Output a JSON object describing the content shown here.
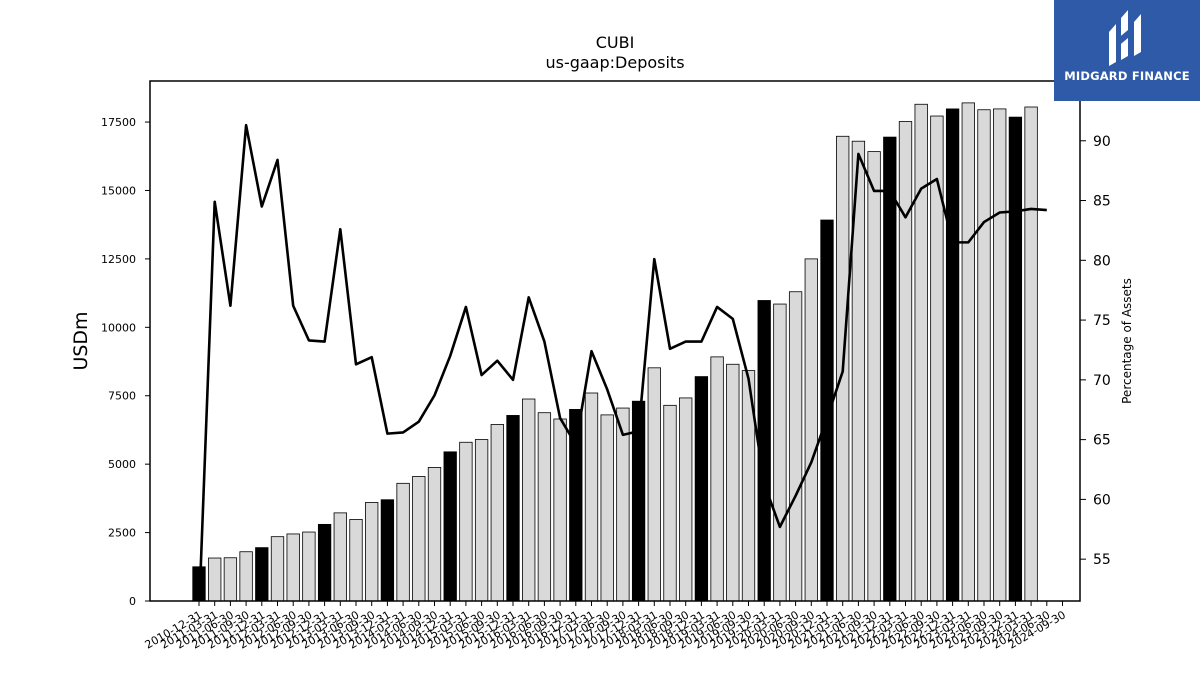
{
  "chart_data": {
    "type": "bar",
    "title": "CUBI",
    "subtitle": "us-gaap:Deposits",
    "ylabel": "USDm",
    "y2label": "Percentage of Assets",
    "ylim": [
      0,
      19000
    ],
    "y2lim": [
      51.5,
      95
    ],
    "yticks": [
      0,
      2500,
      5000,
      7500,
      10000,
      12500,
      15000,
      17500
    ],
    "y2ticks": [
      55,
      60,
      65,
      70,
      75,
      80,
      85,
      90
    ],
    "categories": [
      "2010-12-31",
      "2011-03-31",
      "2011-06-30",
      "2011-09-30",
      "2011-12-31",
      "2012-03-31",
      "2012-06-30",
      "2012-09-30",
      "2012-12-31",
      "2013-03-31",
      "2013-06-30",
      "2013-09-30",
      "2013-12-31",
      "2014-03-31",
      "2014-06-30",
      "2014-09-30",
      "2014-12-31",
      "2015-03-31",
      "2015-06-30",
      "2015-09-30",
      "2015-12-31",
      "2016-03-31",
      "2016-06-30",
      "2016-09-30",
      "2016-12-31",
      "2017-03-31",
      "2017-06-30",
      "2017-09-30",
      "2017-12-31",
      "2018-03-31",
      "2018-06-30",
      "2018-09-30",
      "2018-12-31",
      "2019-03-31",
      "2019-06-30",
      "2019-09-30",
      "2019-12-31",
      "2020-03-31",
      "2020-06-30",
      "2020-09-30",
      "2020-12-31",
      "2021-03-31",
      "2021-06-30",
      "2021-09-30",
      "2021-12-31",
      "2022-03-31",
      "2022-06-30",
      "2022-09-30",
      "2022-12-31",
      "2023-03-31",
      "2023-06-30",
      "2023-09-30",
      "2023-12-31",
      "2024-03-31",
      "2024-06-30",
      "2024-09-30"
    ],
    "series": [
      {
        "kind": "bar",
        "values": [
          1250,
          1570,
          1580,
          1800,
          1950,
          2350,
          2450,
          2520,
          2800,
          3220,
          2980,
          3600,
          3700,
          4300,
          4550,
          4880,
          5450,
          5800,
          5900,
          6450,
          6780,
          7380,
          6880,
          6650,
          7000,
          7600,
          6800,
          7050,
          7300,
          8520,
          7150,
          7420,
          8200,
          8920,
          8650,
          8420,
          10980,
          10850,
          11300,
          12500,
          13920,
          16980,
          16800,
          16420,
          16950,
          17520,
          18150,
          17720,
          17980,
          18200,
          17950,
          17980,
          17680,
          18050,
          null,
          null
        ],
        "highlight_every": 4,
        "highlight_color": "#000000",
        "color": "#d9d9d9"
      },
      {
        "kind": "line",
        "axis": "right",
        "color": "#000000",
        "values": [
          50.5,
          84.9,
          76.2,
          91.3,
          84.5,
          88.4,
          76.2,
          73.3,
          73.2,
          82.6,
          71.3,
          71.9,
          65.5,
          65.6,
          66.5,
          68.7,
          72.0,
          76.1,
          70.4,
          71.6,
          70.0,
          76.9,
          73.2,
          66.8,
          64.6,
          72.4,
          69.2,
          65.4,
          65.7,
          80.1,
          72.6,
          73.2,
          73.2,
          76.1,
          75.1,
          70.1,
          61.3,
          57.7,
          60.3,
          63.1,
          66.8,
          70.7,
          88.9,
          85.8,
          85.8,
          83.6,
          86.0,
          86.8,
          81.5,
          81.5,
          83.2,
          84.0,
          84.1,
          84.3,
          84.2,
          null
        ]
      }
    ],
    "grid": false
  },
  "logo": {
    "text": "MIDGARD FINANCE"
  }
}
